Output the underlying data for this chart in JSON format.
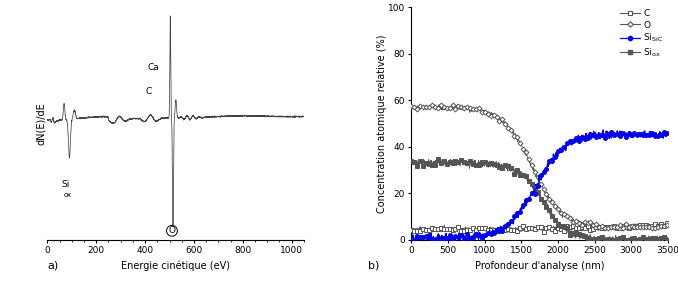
{
  "panel_a": {
    "xlabel": "Energie cinétique (eV)",
    "ylabel": "dN(E)/dE",
    "xlim": [
      0,
      1050
    ],
    "xticks": [
      0,
      200,
      400,
      600,
      800,
      1000
    ]
  },
  "panel_b": {
    "xlabel": "Profondeur d'analyse (nm)",
    "ylabel": "Concentration atomique relative (%)",
    "xlim": [
      0,
      3500
    ],
    "ylim": [
      0,
      100
    ],
    "xticks": [
      0,
      500,
      1000,
      1500,
      2000,
      2500,
      3000,
      3500
    ],
    "yticks": [
      0,
      20,
      40,
      60,
      80,
      100
    ]
  },
  "label_a": "a)",
  "label_b": "b)",
  "color_dark": "#555555",
  "color_blue": "#0000ee"
}
